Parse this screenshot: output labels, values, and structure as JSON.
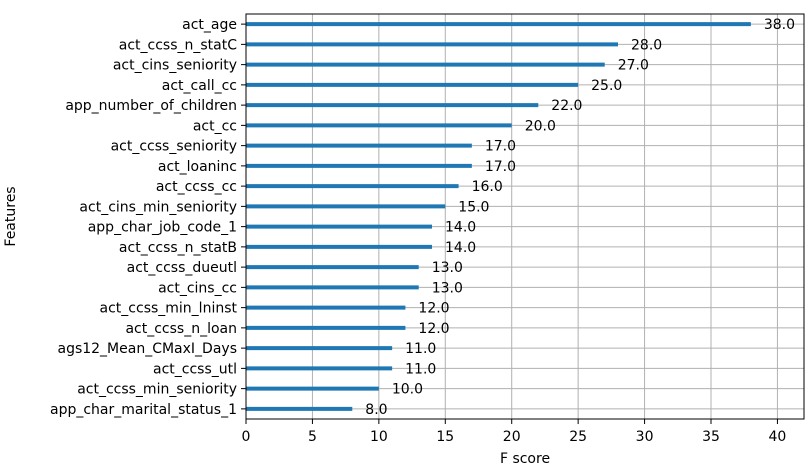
{
  "chart_data": {
    "type": "bar",
    "orientation": "horizontal",
    "title": "",
    "xlabel": "F score",
    "ylabel": "Features",
    "xlim": [
      0,
      42
    ],
    "xticks": [
      0,
      5,
      10,
      15,
      20,
      25,
      30,
      35,
      40
    ],
    "grid": true,
    "bar_color": "#1f77b4",
    "categories": [
      "act_age",
      "act_ccss_n_statC",
      "act_cins_seniority",
      "act_call_cc",
      "app_number_of_children",
      "act_cc",
      "act_ccss_seniority",
      "act_loaninc",
      "act_ccss_cc",
      "act_cins_min_seniority",
      "app_char_job_code_1",
      "act_ccss_n_statB",
      "act_ccss_dueutl",
      "act_cins_cc",
      "act_ccss_min_lninst",
      "act_ccss_n_loan",
      "ags12_Mean_CMaxI_Days",
      "act_ccss_utl",
      "act_ccss_min_seniority",
      "app_char_marital_status_1"
    ],
    "values": [
      38.0,
      28.0,
      27.0,
      25.0,
      22.0,
      20.0,
      17.0,
      17.0,
      16.0,
      15.0,
      14.0,
      14.0,
      13.0,
      13.0,
      12.0,
      12.0,
      11.0,
      11.0,
      10.0,
      8.0
    ],
    "value_labels": [
      "38.0",
      "28.0",
      "27.0",
      "25.0",
      "22.0",
      "20.0",
      "17.0",
      "17.0",
      "16.0",
      "15.0",
      "14.0",
      "14.0",
      "13.0",
      "13.0",
      "12.0",
      "12.0",
      "11.0",
      "11.0",
      "10.0",
      "8.0"
    ]
  }
}
